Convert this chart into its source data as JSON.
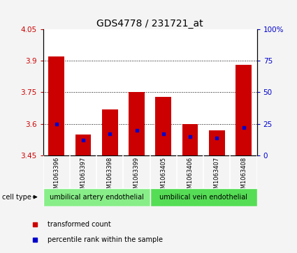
{
  "title": "GDS4778 / 231721_at",
  "samples": [
    "GSM1063396",
    "GSM1063397",
    "GSM1063398",
    "GSM1063399",
    "GSM1063405",
    "GSM1063406",
    "GSM1063407",
    "GSM1063408"
  ],
  "transformed_count": [
    3.92,
    3.55,
    3.67,
    3.75,
    3.73,
    3.6,
    3.57,
    3.88
  ],
  "percentile_rank": [
    25,
    12,
    17,
    20,
    17,
    15,
    14,
    22
  ],
  "ylim_left": [
    3.45,
    4.05
  ],
  "ylim_right": [
    0,
    100
  ],
  "yticks_left": [
    3.45,
    3.6,
    3.75,
    3.9,
    4.05
  ],
  "yticks_right": [
    0,
    25,
    50,
    75,
    100
  ],
  "bar_bottom": 3.45,
  "bar_width": 0.6,
  "bar_color": "#cc0000",
  "dot_color": "#0000cc",
  "bg_plot": "#ffffff",
  "bg_labels": "#bbbbbb",
  "fig_bg": "#f4f4f4",
  "cell_type_groups": [
    {
      "label": "umbilical artery endothelial",
      "n": 4,
      "color": "#88ee88"
    },
    {
      "label": "umbilical vein endothelial",
      "n": 4,
      "color": "#55dd55"
    }
  ],
  "legend_items": [
    {
      "label": "transformed count",
      "color": "#cc0000"
    },
    {
      "label": "percentile rank within the sample",
      "color": "#0000cc"
    }
  ],
  "cell_type_label": "cell type",
  "left_tick_color": "#cc0000",
  "right_tick_color": "#0000cc",
  "title_fontsize": 10,
  "tick_fontsize": 7.5,
  "label_fontsize": 7,
  "grid_lines": [
    3.6,
    3.75,
    3.9
  ]
}
